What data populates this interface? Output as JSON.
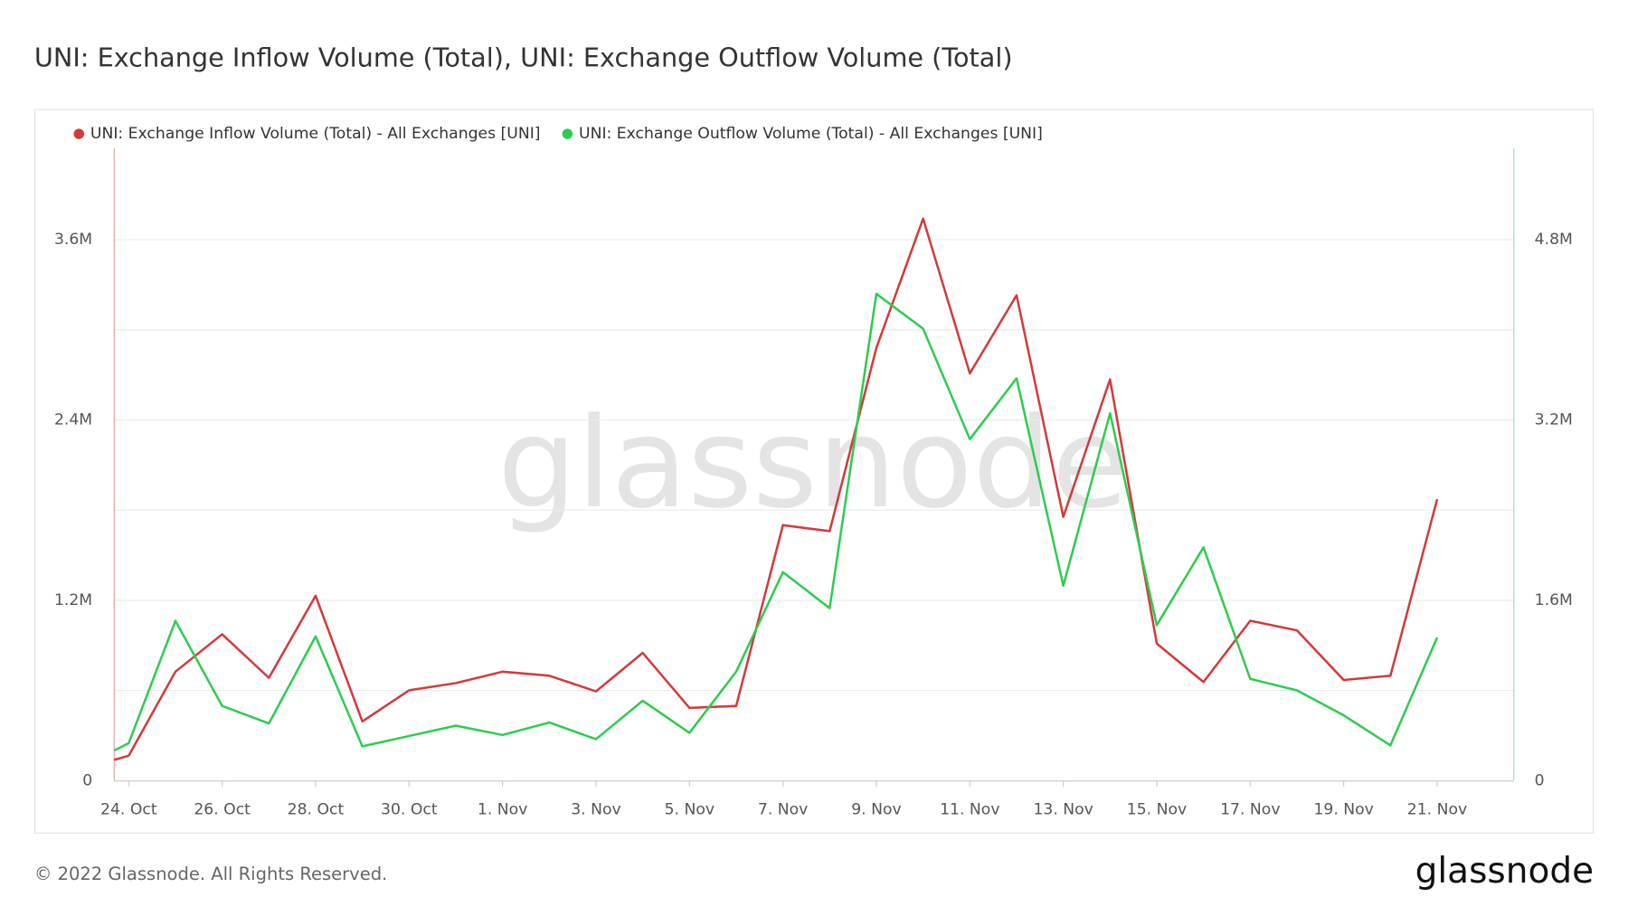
{
  "chart_data": {
    "type": "line",
    "title": "UNI: Exchange Inflow Volume (Total), UNI: Exchange Outflow Volume (Total)",
    "watermark": "glassnode",
    "footer": "© 2022 Glassnode. All Rights Reserved.",
    "logo": "glassnode",
    "x": [
      -0.31,
      0,
      1,
      2,
      3,
      4,
      5,
      6,
      7,
      8,
      9,
      10,
      11,
      12,
      13,
      14,
      15,
      16,
      17,
      18,
      19,
      20,
      21,
      22,
      23,
      24,
      25,
      26,
      27,
      28
    ],
    "xlim": [
      -0.31,
      29.64
    ],
    "xticks": [
      {
        "value": 0,
        "label": "24. Oct"
      },
      {
        "value": 2,
        "label": "26. Oct"
      },
      {
        "value": 4,
        "label": "28. Oct"
      },
      {
        "value": 6,
        "label": "30. Oct"
      },
      {
        "value": 8,
        "label": "1. Nov"
      },
      {
        "value": 10,
        "label": "3. Nov"
      },
      {
        "value": 12,
        "label": "5. Nov"
      },
      {
        "value": 14,
        "label": "7. Nov"
      },
      {
        "value": 16,
        "label": "9. Nov"
      },
      {
        "value": 18,
        "label": "11. Nov"
      },
      {
        "value": 20,
        "label": "13. Nov"
      },
      {
        "value": 22,
        "label": "15. Nov"
      },
      {
        "value": 24,
        "label": "17. Nov"
      },
      {
        "value": 26,
        "label": "19. Nov"
      },
      {
        "value": 28,
        "label": "21. Nov"
      }
    ],
    "ylim": [
      0,
      4207000
    ],
    "yticks": [
      0,
      {
        "value": 1200000,
        "label": "1.2M"
      },
      {
        "value": 2400000,
        "label": "2.4M"
      },
      {
        "value": 3600000,
        "label": "3.6M"
      }
    ],
    "ygrid": [
      600000,
      1800000,
      3000000
    ],
    "y2lim": [
      0,
      5610000
    ],
    "y2ticks": [
      0,
      {
        "value": 1600000,
        "label": "1.6M"
      },
      {
        "value": 3200000,
        "label": "3.2M"
      },
      {
        "value": 4800000,
        "label": "4.8M"
      }
    ],
    "grid": true,
    "series": [
      {
        "name": "UNI: Exchange Inflow Volume (Total) - All Exchanges [UNI]",
        "color": "#d13b3b",
        "values": [
          138000,
          166000,
          725000,
          974000,
          684000,
          1230000,
          394000,
          601000,
          649000,
          725000,
          698000,
          594000,
          850000,
          484000,
          497000,
          1700000,
          1660000,
          2880000,
          3740000,
          2710000,
          3230000,
          1755000,
          2670000,
          912000,
          656000,
          1064000,
          1000000,
          670000,
          698000,
          1872000
        ]
      },
      {
        "name": "UNI: Exchange Outflow Volume (Total) - All Exchanges [UNI]",
        "color": "#2ecc50",
        "axis": "y2",
        "values": [
          267000,
          332000,
          1418000,
          663000,
          507000,
          1280000,
          304000,
          396000,
          488000,
          405000,
          516000,
          368000,
          709000,
          424000,
          967000,
          1850000,
          1530000,
          4320000,
          4010000,
          3030000,
          3570000,
          1730000,
          3260000,
          1380000,
          2070000,
          903000,
          801000,
          580000,
          313000,
          1270000
        ]
      }
    ]
  }
}
